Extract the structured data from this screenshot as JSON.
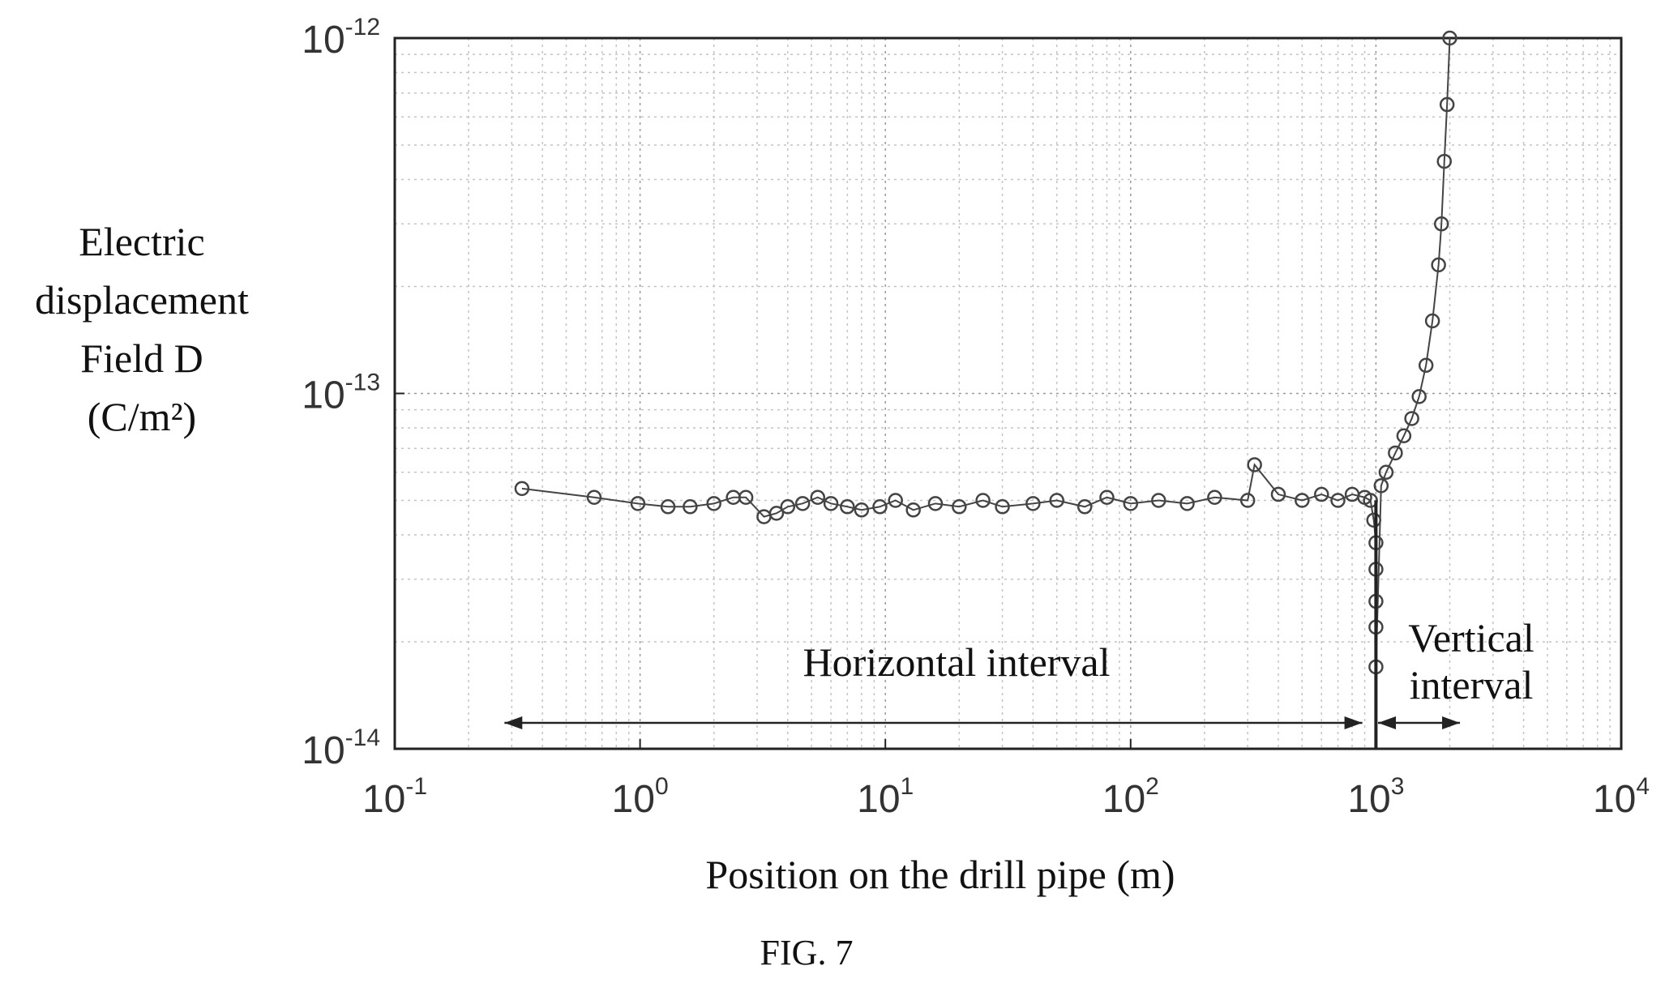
{
  "chart_data": {
    "type": "scatter",
    "title": "",
    "xlabel": "Position on the drill pipe (m)",
    "ylabel_lines": [
      "Electric",
      "displacement",
      "Field D",
      "(C/m²)"
    ],
    "x_scale": "log",
    "y_scale": "log",
    "xlim": [
      0.1,
      10000
    ],
    "ylim": [
      1e-14,
      1e-12
    ],
    "x_ticks": [
      0.1,
      1,
      10,
      100,
      1000,
      10000
    ],
    "x_tick_labels": [
      {
        "base": "10",
        "exp": "-1"
      },
      {
        "base": "10",
        "exp": "0"
      },
      {
        "base": "10",
        "exp": "1"
      },
      {
        "base": "10",
        "exp": "2"
      },
      {
        "base": "10",
        "exp": "3"
      },
      {
        "base": "10",
        "exp": "4"
      }
    ],
    "y_ticks": [
      1e-14,
      1e-13,
      1e-12
    ],
    "y_tick_labels": [
      {
        "base": "10",
        "exp": "-14"
      },
      {
        "base": "10",
        "exp": "-13"
      },
      {
        "base": "10",
        "exp": "-12"
      }
    ],
    "grid": true,
    "marker": "open-circle",
    "series_color": "#444444",
    "series": [
      {
        "values_note_free": true,
        "x": [
          0.33,
          0.65,
          0.98,
          1.3,
          1.6,
          2.0,
          2.4,
          2.7,
          3.2,
          3.6,
          4.0,
          4.6,
          5.3,
          6.0,
          7.0,
          8.0,
          9.5,
          11,
          13,
          16,
          20,
          25,
          30,
          40,
          50,
          65,
          80,
          100,
          130,
          170,
          220,
          300,
          320,
          400,
          500,
          600,
          700,
          800,
          900,
          950,
          980,
          1000,
          1000,
          1000,
          1000,
          1000,
          1050,
          1100,
          1200,
          1300,
          1400,
          1500,
          1600,
          1700,
          1800,
          1850,
          1900,
          1950,
          2000
        ],
        "y": [
          5.4e-14,
          5.1e-14,
          4.9e-14,
          4.8e-14,
          4.8e-14,
          4.9e-14,
          5.1e-14,
          5.1e-14,
          4.5e-14,
          4.6e-14,
          4.8e-14,
          4.9e-14,
          5.1e-14,
          4.9e-14,
          4.8e-14,
          4.7e-14,
          4.8e-14,
          5e-14,
          4.7e-14,
          4.9e-14,
          4.8e-14,
          5e-14,
          4.8e-14,
          4.9e-14,
          5e-14,
          4.8e-14,
          5.1e-14,
          4.9e-14,
          5e-14,
          4.9e-14,
          5.1e-14,
          5e-14,
          6.3e-14,
          5.2e-14,
          5e-14,
          5.2e-14,
          5e-14,
          5.2e-14,
          5.1e-14,
          5e-14,
          4.4e-14,
          3.8e-14,
          3.2e-14,
          2.6e-14,
          2.2e-14,
          1.7e-14,
          5.5e-14,
          6e-14,
          6.8e-14,
          7.6e-14,
          8.5e-14,
          9.8e-14,
          1.2e-13,
          1.6e-13,
          2.3e-13,
          3e-13,
          4.5e-13,
          6.5e-13,
          1e-12
        ]
      }
    ],
    "annotations": [
      {
        "text": "Horizontal interval",
        "arrow_from": 0.28,
        "arrow_to": 880
      },
      {
        "text_lines": [
          "Vertical",
          "interval"
        ],
        "arrow_from": 1020,
        "arrow_to": 2200
      }
    ],
    "boundary_line_x": 1000
  },
  "figure_caption": "FIG. 7"
}
